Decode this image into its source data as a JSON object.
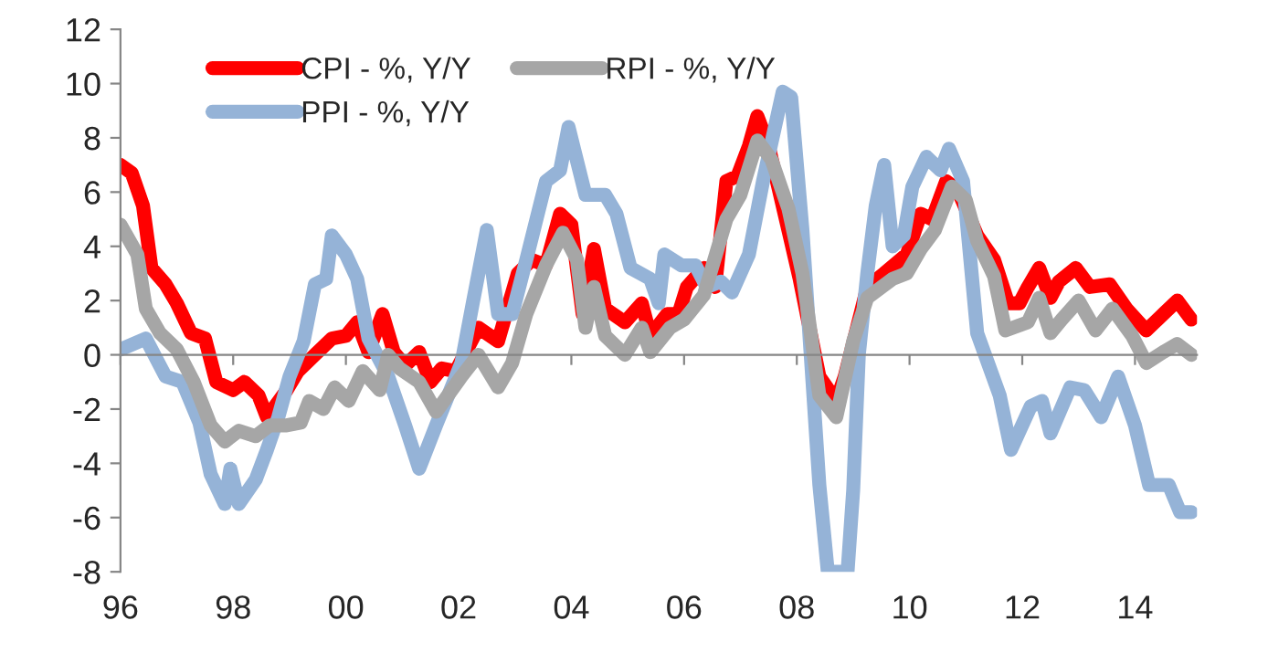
{
  "chart_data": {
    "type": "line",
    "xlim": [
      1996,
      2015.1
    ],
    "xticks": [
      {
        "value": 1996,
        "label": "96"
      },
      {
        "value": 1998,
        "label": "98"
      },
      {
        "value": 2000,
        "label": "00"
      },
      {
        "value": 2002,
        "label": "02"
      },
      {
        "value": 2004,
        "label": "04"
      },
      {
        "value": 2006,
        "label": "06"
      },
      {
        "value": 2008,
        "label": "08"
      },
      {
        "value": 2010,
        "label": "10"
      },
      {
        "value": 2012,
        "label": "12"
      },
      {
        "value": 2014,
        "label": "14"
      }
    ],
    "ylim": [
      -8,
      12
    ],
    "yticks": [
      -8,
      -6,
      -4,
      -2,
      0,
      2,
      4,
      6,
      8,
      10,
      12
    ],
    "legend": "top left",
    "marker": "none",
    "line_style": "solid",
    "series": [
      {
        "name": "CPI - %, Y/Y",
        "color": "#ff0000",
        "x": [
          1996.0,
          1996.2,
          1996.4,
          1996.55,
          1996.8,
          1997.0,
          1997.25,
          1997.5,
          1997.7,
          1998.0,
          1998.2,
          1998.45,
          1998.6,
          1998.95,
          1999.15,
          1999.45,
          1999.75,
          2000.0,
          2000.2,
          2000.4,
          2000.65,
          2000.85,
          2001.05,
          2001.3,
          2001.5,
          2001.7,
          2001.95,
          2002.35,
          2002.7,
          2003.05,
          2003.3,
          2003.55,
          2003.8,
          2004.0,
          2004.2,
          2004.4,
          2004.6,
          2004.95,
          2005.25,
          2005.4,
          2005.7,
          2005.9,
          2006.05,
          2006.35,
          2006.55,
          2006.75,
          2006.95,
          2007.15,
          2007.3,
          2007.5,
          2007.85,
          2008.05,
          2008.4,
          2008.7,
          2008.85,
          2009.25,
          2009.55,
          2009.95,
          2010.2,
          2010.4,
          2010.65,
          2010.85,
          2011.2,
          2011.5,
          2011.75,
          2011.95,
          2012.1,
          2012.3,
          2012.5,
          2012.65,
          2012.95,
          2013.2,
          2013.55,
          2013.85,
          2014.2,
          2014.45,
          2014.75,
          2015.0
        ],
        "values": [
          7.0,
          6.7,
          5.5,
          3.2,
          2.6,
          1.9,
          0.8,
          0.6,
          -1.0,
          -1.3,
          -1.0,
          -1.5,
          -2.3,
          -1.3,
          -0.6,
          0.0,
          0.6,
          0.7,
          1.2,
          0.1,
          1.5,
          0.1,
          -0.4,
          0.1,
          -1.0,
          -0.5,
          -0.6,
          1.0,
          0.5,
          3.0,
          3.5,
          3.3,
          5.2,
          4.8,
          1.5,
          3.9,
          1.7,
          1.2,
          1.9,
          0.7,
          1.5,
          1.5,
          2.5,
          3.2,
          2.5,
          6.4,
          6.6,
          7.7,
          8.8,
          7.7,
          4.6,
          2.8,
          -0.8,
          -1.7,
          -0.8,
          2.5,
          3.0,
          3.7,
          5.2,
          5.0,
          6.4,
          6.1,
          4.4,
          3.5,
          1.9,
          1.9,
          2.5,
          3.2,
          2.1,
          2.7,
          3.2,
          2.5,
          2.6,
          1.7,
          0.9,
          1.4,
          2.0,
          1.3
        ]
      },
      {
        "name": "PPI - %, Y/Y",
        "color": "#95b3d7",
        "x": [
          1996.0,
          1996.45,
          1996.8,
          1997.1,
          1997.4,
          1997.6,
          1997.85,
          1997.95,
          1998.1,
          1998.4,
          1998.6,
          1998.8,
          1999.0,
          1999.25,
          1999.45,
          1999.65,
          1999.75,
          2000.0,
          2000.2,
          2000.4,
          2000.75,
          2001.05,
          2001.3,
          2001.6,
          2002.05,
          2002.25,
          2002.5,
          2002.7,
          2002.95,
          2003.2,
          2003.55,
          2003.8,
          2003.95,
          2004.25,
          2004.6,
          2004.8,
          2005.05,
          2005.4,
          2005.55,
          2005.65,
          2005.95,
          2006.2,
          2006.4,
          2006.65,
          2006.85,
          2007.15,
          2007.4,
          2007.75,
          2007.9,
          2008.1,
          2008.4,
          2008.55,
          2008.9,
          2009.0,
          2009.1,
          2009.25,
          2009.4,
          2009.55,
          2009.7,
          2009.9,
          2010.05,
          2010.3,
          2010.55,
          2010.7,
          2010.95,
          2011.2,
          2011.6,
          2011.8,
          2012.15,
          2012.35,
          2012.5,
          2012.85,
          2013.1,
          2013.4,
          2013.7,
          2014.0,
          2014.25,
          2014.6,
          2014.8,
          2015.0
        ],
        "values": [
          0.2,
          0.6,
          -0.8,
          -1.0,
          -2.5,
          -4.4,
          -5.5,
          -4.2,
          -5.5,
          -4.6,
          -3.5,
          -2.3,
          -0.8,
          0.5,
          2.6,
          2.8,
          4.4,
          3.7,
          2.8,
          0.6,
          -0.8,
          -2.6,
          -4.2,
          -2.6,
          -0.3,
          1.9,
          4.6,
          1.5,
          1.5,
          3.5,
          6.4,
          6.8,
          8.4,
          5.9,
          5.9,
          5.2,
          3.2,
          2.8,
          1.9,
          3.7,
          3.3,
          3.3,
          2.5,
          2.7,
          2.3,
          3.7,
          6.4,
          9.7,
          9.5,
          4.6,
          -4.8,
          -8.0,
          -8.0,
          -5.0,
          0.0,
          3.0,
          5.5,
          7.0,
          4.0,
          4.4,
          6.2,
          7.3,
          6.8,
          7.6,
          6.4,
          0.8,
          -1.5,
          -3.5,
          -1.9,
          -1.7,
          -2.9,
          -1.2,
          -1.3,
          -2.3,
          -0.8,
          -2.6,
          -4.8,
          -4.8,
          -5.8,
          -5.8
        ]
      },
      {
        "name": "RPI - %, Y/Y",
        "color": "#a6a6a6",
        "x": [
          1996.0,
          1996.3,
          1996.45,
          1996.7,
          1997.0,
          1997.3,
          1997.6,
          1997.85,
          1998.1,
          1998.4,
          1998.65,
          1998.95,
          1999.2,
          1999.35,
          1999.6,
          1999.8,
          2000.05,
          2000.3,
          2000.6,
          2000.75,
          2000.95,
          2001.3,
          2001.6,
          2002.05,
          2002.35,
          2002.7,
          2002.95,
          2003.2,
          2003.55,
          2003.85,
          2004.1,
          2004.25,
          2004.4,
          2004.6,
          2004.95,
          2005.25,
          2005.4,
          2005.75,
          2006.0,
          2006.35,
          2006.75,
          2007.0,
          2007.3,
          2007.55,
          2007.85,
          2008.1,
          2008.4,
          2008.7,
          2009.0,
          2009.25,
          2009.7,
          2009.95,
          2010.2,
          2010.45,
          2010.75,
          2011.0,
          2011.2,
          2011.5,
          2011.7,
          2012.1,
          2012.3,
          2012.5,
          2012.7,
          2013.0,
          2013.3,
          2013.6,
          2013.95,
          2014.2,
          2014.5,
          2014.75,
          2015.0
        ],
        "values": [
          4.8,
          3.7,
          1.7,
          0.8,
          0.2,
          -1.0,
          -2.6,
          -3.2,
          -2.8,
          -3.0,
          -2.6,
          -2.6,
          -2.5,
          -1.7,
          -2.0,
          -1.2,
          -1.7,
          -0.6,
          -1.3,
          0.0,
          -0.5,
          -1.0,
          -2.1,
          -0.8,
          0.0,
          -1.2,
          -0.3,
          1.5,
          3.3,
          4.5,
          3.5,
          1.0,
          2.5,
          0.7,
          0.0,
          1.0,
          0.1,
          1.0,
          1.3,
          2.2,
          5.0,
          5.9,
          7.9,
          7.2,
          5.4,
          3.0,
          -1.5,
          -2.3,
          0.5,
          2.1,
          2.8,
          3.0,
          3.9,
          4.6,
          6.2,
          5.7,
          4.2,
          2.9,
          0.9,
          1.2,
          2.1,
          0.8,
          1.3,
          2.0,
          0.9,
          1.7,
          0.7,
          -0.3,
          0.1,
          0.4,
          0.0
        ]
      }
    ]
  }
}
